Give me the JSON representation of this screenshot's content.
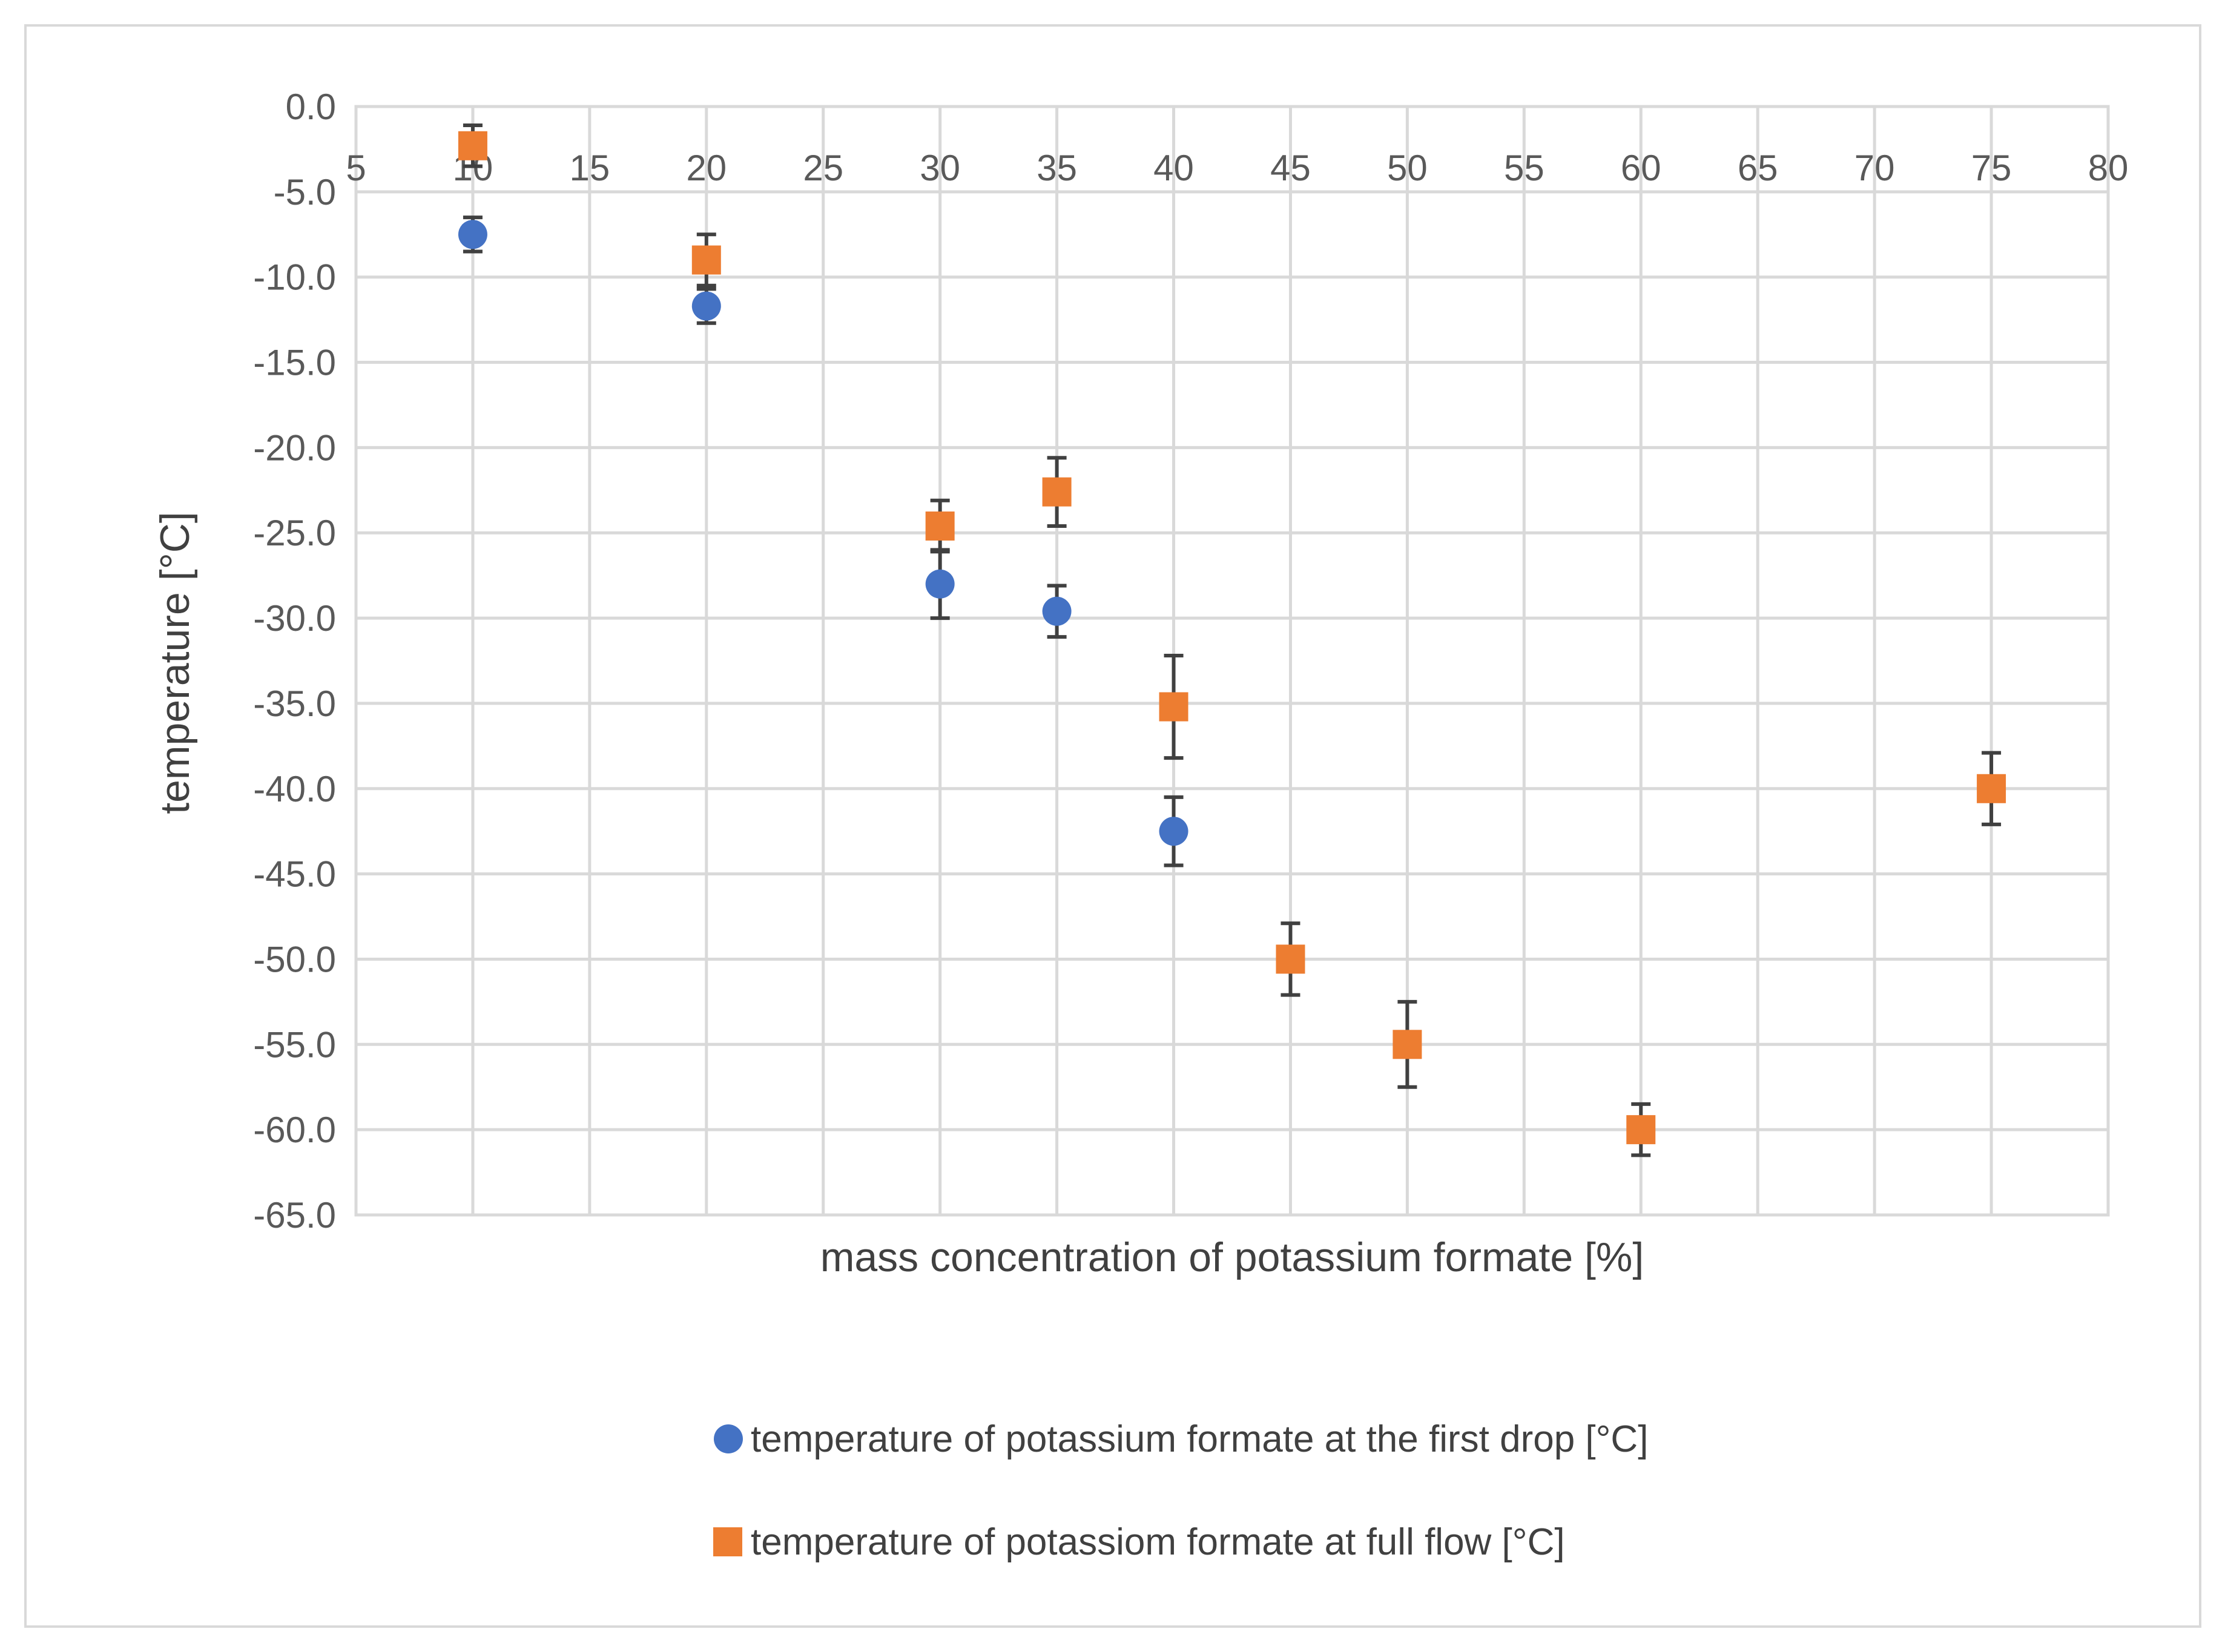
{
  "chart_data": {
    "type": "scatter",
    "title": "",
    "xlabel": "mass concentration of potassium formate [%]",
    "ylabel": "temperature [°C]",
    "xlim": [
      5,
      80
    ],
    "ylim": [
      -65,
      0
    ],
    "x_ticks": [
      "5",
      "10",
      "15",
      "20",
      "25",
      "30",
      "35",
      "40",
      "45",
      "50",
      "55",
      "60",
      "65",
      "70",
      "75",
      "80"
    ],
    "y_ticks": [
      "0.0",
      "-5.0",
      "-10.0",
      "-15.0",
      "-20.0",
      "-25.0",
      "-30.0",
      "-35.0",
      "-40.0",
      "-45.0",
      "-50.0",
      "-55.0",
      "-60.0",
      "-65.0"
    ],
    "grid": true,
    "legend_position": "bottom",
    "series": [
      {
        "name": "temperature of potassium formate at the first drop [°C]",
        "marker": "circle",
        "color": "#4472C4",
        "points": [
          {
            "x": 10,
            "y": -7.5,
            "err": 1.0
          },
          {
            "x": 20,
            "y": -11.7,
            "err": 1.0
          },
          {
            "x": 30,
            "y": -28.0,
            "err": 2.0
          },
          {
            "x": 35,
            "y": -29.6,
            "err": 1.5
          },
          {
            "x": 40,
            "y": -42.5,
            "err": 2.0
          }
        ]
      },
      {
        "name": "temperature of potassiom formate at full flow [°C]",
        "marker": "square",
        "color": "#ED7D31",
        "points": [
          {
            "x": 10,
            "y": -2.3,
            "err": 1.2
          },
          {
            "x": 20,
            "y": -9.0,
            "err": 1.5
          },
          {
            "x": 30,
            "y": -24.6,
            "err": 1.5
          },
          {
            "x": 35,
            "y": -22.6,
            "err": 2.0
          },
          {
            "x": 40,
            "y": -35.2,
            "err": 3.0
          },
          {
            "x": 45,
            "y": -50.0,
            "err": 2.1
          },
          {
            "x": 50,
            "y": -55.0,
            "err": 2.5
          },
          {
            "x": 60,
            "y": -60.0,
            "err": 1.5
          },
          {
            "x": 75,
            "y": -40.0,
            "err": 2.1
          }
        ]
      }
    ]
  }
}
